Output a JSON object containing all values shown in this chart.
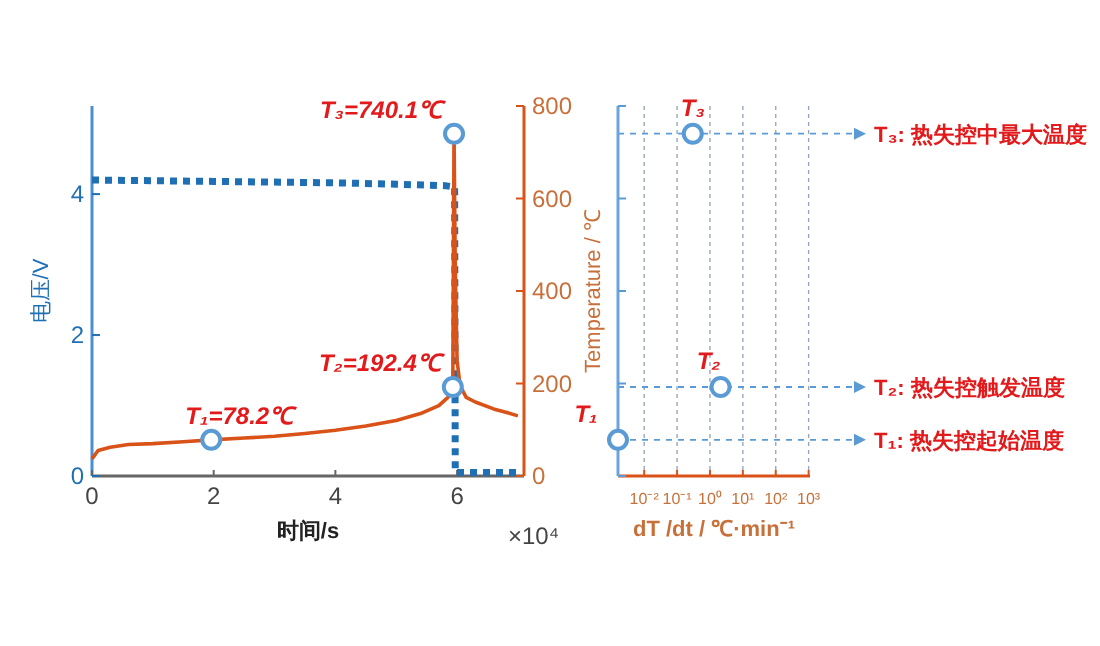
{
  "chart_data": [
    {
      "type": "line",
      "xlabel": "时间/s",
      "ylabel": "电压/V",
      "y2label": "Temperature / ℃",
      "xlim": [
        0,
        7.1
      ],
      "xticks": [
        0,
        2,
        4,
        6
      ],
      "ylim": [
        0,
        5.25
      ],
      "yticks": [
        0,
        2,
        4
      ],
      "y2lim": [
        0,
        800
      ],
      "y2ticks": [
        0,
        200,
        400,
        600,
        800
      ],
      "annotations": [
        "×10⁴",
        "T₁=78.2℃",
        "T₂=192.4℃",
        "T₃=740.1℃"
      ],
      "series": [
        {
          "color": "#1f6fb5",
          "line_style": "dotted",
          "x": [
            0,
            1,
            2,
            3,
            4,
            5,
            5.8,
            5.96,
            5.97,
            6.5,
            7
          ],
          "values": [
            4.2,
            4.19,
            4.18,
            4.17,
            4.16,
            4.14,
            4.12,
            4.1,
            0.05,
            0.05,
            0.05
          ]
        },
        {
          "axis": "y2",
          "color": "#d95319",
          "line_style": "solid",
          "x": [
            0,
            0.1,
            0.3,
            0.6,
            1,
            1.5,
            1.96,
            2.5,
            3,
            3.5,
            4,
            4.5,
            5,
            5.4,
            5.7,
            5.85,
            5.93,
            5.95,
            5.97,
            6,
            6.05,
            6.15,
            6.3,
            6.6,
            6.8,
            7
          ],
          "values": [
            37,
            55,
            62,
            68,
            70,
            74,
            78.2,
            82,
            86,
            92,
            99,
            108,
            120,
            135,
            152,
            170,
            192.4,
            740.1,
            450,
            250,
            195,
            170,
            160,
            145,
            138,
            130
          ]
        },
        {
          "type": "scatter",
          "axis": "y2",
          "color": "#5b9bd5",
          "marker": "circle",
          "x": [
            1.96,
            5.93,
            5.95
          ],
          "values": [
            78.2,
            192.4,
            740.1
          ]
        }
      ]
    },
    {
      "type": "scatter",
      "xlabel": "dT /dt / ℃·min⁻¹",
      "log": "x",
      "xlim": [
        0.0016,
        1100
      ],
      "xticks": [
        {
          "value": 0.01,
          "label": "10⁻²"
        },
        {
          "value": 0.1,
          "label": "10⁻¹"
        },
        {
          "value": 1,
          "label": "10⁰"
        },
        {
          "value": 10,
          "label": "10¹"
        },
        {
          "value": 100,
          "label": "10²"
        },
        {
          "value": 1000,
          "label": "10³"
        }
      ],
      "ylim": [
        0,
        800
      ],
      "yticks": [
        0,
        200,
        400,
        600,
        800
      ],
      "tick_labels": "x",
      "grid": "x",
      "series": [
        {
          "color": "#5b9bd5",
          "marker": "circle",
          "x": [
            0.0016,
            2.1,
            0.3
          ],
          "values": [
            78.2,
            192.4,
            740.1
          ]
        }
      ],
      "annotations": [
        {
          "text": "T₁",
          "x": 0.0016,
          "y": 78.2
        },
        {
          "text": "T₂",
          "x": 2.1,
          "y": 192.4
        },
        {
          "text": "T₃",
          "x": 0.3,
          "y": 740.1
        }
      ],
      "ref_lines": [
        {
          "axis": "y",
          "value": 78.2,
          "label": "T₁: 热失控起始温度",
          "color": "#5b9bd5",
          "line_style": "dotted"
        },
        {
          "axis": "y",
          "value": 192.4,
          "label": "T₂: 热失控触发温度",
          "color": "#5b9bd5",
          "line_style": "dotted"
        },
        {
          "axis": "y",
          "value": 740.1,
          "label": "T₃: 热失控中最大温度",
          "color": "#5b9bd5",
          "line_style": "dotted"
        }
      ]
    }
  ]
}
